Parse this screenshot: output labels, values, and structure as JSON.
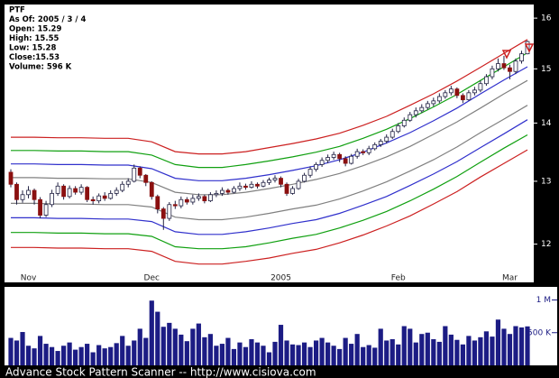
{
  "chart_data": [
    {
      "type": "candlestick",
      "info": [
        "PTF",
        "As Of: 2005 / 3 / 4",
        "Open: 15.29",
        "High: 15.55",
        "Low: 15.28",
        "Close:15.53",
        "Volume: 596 K"
      ],
      "categories": [
        null,
        null,
        null,
        "Nov",
        null,
        null,
        null,
        null,
        null,
        null,
        null,
        null,
        null,
        null,
        null,
        null,
        null,
        null,
        null,
        null,
        null,
        null,
        null,
        null,
        "Dec",
        null,
        null,
        null,
        null,
        null,
        null,
        null,
        null,
        null,
        null,
        null,
        null,
        null,
        null,
        null,
        null,
        null,
        null,
        null,
        null,
        null,
        "2005",
        null,
        null,
        null,
        null,
        null,
        null,
        null,
        null,
        null,
        null,
        null,
        null,
        null,
        null,
        null,
        null,
        null,
        null,
        null,
        "Feb",
        null,
        null,
        null,
        null,
        null,
        null,
        null,
        null,
        null,
        null,
        null,
        null,
        null,
        null,
        null,
        null,
        null,
        null,
        "Mar",
        null,
        null,
        null
      ],
      "open": [
        13.15,
        12.95,
        12.7,
        12.78,
        12.85,
        12.7,
        12.45,
        12.62,
        12.8,
        12.92,
        12.75,
        12.88,
        12.82,
        12.9,
        12.7,
        12.68,
        12.76,
        12.72,
        12.8,
        12.85,
        12.95,
        13.0,
        13.22,
        13.1,
        12.98,
        12.75,
        12.55,
        12.4,
        12.62,
        12.6,
        12.7,
        12.66,
        12.72,
        12.75,
        12.68,
        12.78,
        12.8,
        12.85,
        12.82,
        12.88,
        12.92,
        12.9,
        12.95,
        12.92,
        12.98,
        13.02,
        13.05,
        12.95,
        12.8,
        12.88,
        13.0,
        13.1,
        13.2,
        13.28,
        13.35,
        13.4,
        13.45,
        13.38,
        13.3,
        13.42,
        13.5,
        13.48,
        13.55,
        13.62,
        13.68,
        13.75,
        13.85,
        13.95,
        14.05,
        14.15,
        14.22,
        14.28,
        14.35,
        14.4,
        14.48,
        14.55,
        14.62,
        14.5,
        14.42,
        14.55,
        14.6,
        14.72,
        14.85,
        15.0,
        15.1,
        15.02,
        14.95,
        15.15,
        15.29
      ],
      "high": [
        13.2,
        12.98,
        12.85,
        12.92,
        12.88,
        12.74,
        12.68,
        12.86,
        12.98,
        12.95,
        12.93,
        12.92,
        12.95,
        12.92,
        12.75,
        12.8,
        12.82,
        12.85,
        12.9,
        13.0,
        13.05,
        13.28,
        13.25,
        13.12,
        13.0,
        12.78,
        12.58,
        12.66,
        12.68,
        12.75,
        12.74,
        12.78,
        12.8,
        12.78,
        12.82,
        12.85,
        12.9,
        12.88,
        12.92,
        12.98,
        12.96,
        13.0,
        12.98,
        13.02,
        13.06,
        13.1,
        13.08,
        12.98,
        12.92,
        13.04,
        13.14,
        13.25,
        13.32,
        13.4,
        13.45,
        13.5,
        13.48,
        13.42,
        13.46,
        13.55,
        13.54,
        13.6,
        13.66,
        13.72,
        13.8,
        13.9,
        14.0,
        14.1,
        14.2,
        14.28,
        14.34,
        14.4,
        14.46,
        14.54,
        14.6,
        14.68,
        14.65,
        14.54,
        14.6,
        14.66,
        14.78,
        14.9,
        15.06,
        15.2,
        15.25,
        15.08,
        15.2,
        15.35,
        15.55
      ],
      "low": [
        12.9,
        12.62,
        12.65,
        12.72,
        12.62,
        12.4,
        12.42,
        12.58,
        12.76,
        12.7,
        12.72,
        12.78,
        12.78,
        12.66,
        12.62,
        12.64,
        12.68,
        12.7,
        12.76,
        12.82,
        12.9,
        12.98,
        13.05,
        12.92,
        12.7,
        12.48,
        12.22,
        12.36,
        12.55,
        12.56,
        12.62,
        12.62,
        12.68,
        12.64,
        12.66,
        12.74,
        12.76,
        12.78,
        12.8,
        12.84,
        12.86,
        12.88,
        12.88,
        12.9,
        12.94,
        12.98,
        12.9,
        12.76,
        12.78,
        12.86,
        12.98,
        13.06,
        13.16,
        13.24,
        13.3,
        13.36,
        13.32,
        13.25,
        13.28,
        13.38,
        13.44,
        13.44,
        13.52,
        13.58,
        13.64,
        13.72,
        13.82,
        13.92,
        14.02,
        14.1,
        14.18,
        14.24,
        14.3,
        14.36,
        14.44,
        14.5,
        14.45,
        14.36,
        14.4,
        14.5,
        14.56,
        14.68,
        14.8,
        14.95,
        14.98,
        14.8,
        14.9,
        15.1,
        15.28
      ],
      "close": [
        12.95,
        12.7,
        12.78,
        12.85,
        12.7,
        12.45,
        12.62,
        12.8,
        12.92,
        12.75,
        12.88,
        12.82,
        12.9,
        12.7,
        12.68,
        12.76,
        12.72,
        12.8,
        12.85,
        12.95,
        13.0,
        13.22,
        13.1,
        12.98,
        12.75,
        12.55,
        12.4,
        12.62,
        12.6,
        12.7,
        12.66,
        12.72,
        12.75,
        12.68,
        12.78,
        12.8,
        12.85,
        12.82,
        12.88,
        12.92,
        12.9,
        12.95,
        12.92,
        12.98,
        13.02,
        13.05,
        12.95,
        12.8,
        12.88,
        13.0,
        13.1,
        13.2,
        13.28,
        13.35,
        13.4,
        13.45,
        13.38,
        13.3,
        13.42,
        13.5,
        13.48,
        13.55,
        13.62,
        13.68,
        13.75,
        13.85,
        13.95,
        14.05,
        14.15,
        14.22,
        14.28,
        14.35,
        14.4,
        14.48,
        14.55,
        14.62,
        14.5,
        14.42,
        14.55,
        14.6,
        14.72,
        14.85,
        15.0,
        15.1,
        15.02,
        14.95,
        15.15,
        15.29,
        15.53
      ],
      "up_color": "#ffffff",
      "down_color": "#8b1010",
      "outline_color": "#222244",
      "log": true,
      "ylim": [
        11.43,
        16.28
      ],
      "yticks": [
        12,
        13,
        14,
        15,
        16
      ]
    },
    {
      "type": "line",
      "categories": [
        null,
        null,
        null,
        null,
        null,
        null,
        null,
        null,
        null,
        null,
        null,
        null,
        null,
        null,
        null,
        null,
        null,
        null,
        null,
        null,
        null,
        null,
        null
      ],
      "series": [
        {
          "color": "#cc2020",
          "values": [
            13.75,
            13.75,
            13.74,
            13.74,
            13.73,
            13.73,
            13.67,
            13.5,
            13.46,
            13.46,
            13.5,
            13.57,
            13.64,
            13.72,
            13.82,
            13.96,
            14.12,
            14.32,
            14.53,
            14.77,
            15.03,
            15.3,
            15.57
          ]
        },
        {
          "color": "#10a010",
          "values": [
            13.52,
            13.52,
            13.51,
            13.51,
            13.5,
            13.5,
            13.44,
            13.28,
            13.23,
            13.23,
            13.28,
            13.34,
            13.41,
            13.49,
            13.59,
            13.73,
            13.89,
            14.08,
            14.29,
            14.52,
            14.78,
            15.04,
            15.31
          ]
        },
        {
          "color": "#3030cc",
          "values": [
            13.29,
            13.29,
            13.28,
            13.28,
            13.27,
            13.27,
            13.21,
            13.05,
            13.01,
            13.01,
            13.05,
            13.11,
            13.18,
            13.26,
            13.36,
            13.49,
            13.65,
            13.83,
            14.04,
            14.27,
            14.53,
            14.79,
            15.04
          ]
        },
        {
          "color": "#808080",
          "values": [
            13.06,
            13.06,
            13.05,
            13.05,
            13.04,
            13.04,
            12.98,
            12.82,
            12.78,
            12.78,
            12.82,
            12.88,
            12.95,
            13.03,
            13.13,
            13.26,
            13.41,
            13.59,
            13.8,
            14.02,
            14.27,
            14.53,
            14.78
          ]
        },
        {
          "color": "#808080",
          "values": [
            12.64,
            12.64,
            12.63,
            12.63,
            12.62,
            12.62,
            12.58,
            12.42,
            12.38,
            12.38,
            12.42,
            12.48,
            12.55,
            12.61,
            12.71,
            12.84,
            12.99,
            13.17,
            13.36,
            13.58,
            13.83,
            14.07,
            14.32
          ]
        },
        {
          "color": "#3030cc",
          "values": [
            12.41,
            12.41,
            12.4,
            12.4,
            12.39,
            12.39,
            12.35,
            12.19,
            12.15,
            12.15,
            12.19,
            12.25,
            12.32,
            12.38,
            12.48,
            12.61,
            12.75,
            12.93,
            13.12,
            13.33,
            13.57,
            13.81,
            14.06
          ]
        },
        {
          "color": "#10a010",
          "values": [
            12.18,
            12.18,
            12.17,
            12.17,
            12.16,
            12.16,
            12.12,
            11.96,
            11.93,
            11.93,
            11.96,
            12.02,
            12.09,
            12.15,
            12.25,
            12.37,
            12.51,
            12.68,
            12.87,
            13.08,
            13.32,
            13.56,
            13.79
          ]
        },
        {
          "color": "#cc2020",
          "values": [
            11.95,
            11.95,
            11.94,
            11.94,
            11.93,
            11.93,
            11.89,
            11.74,
            11.7,
            11.7,
            11.74,
            11.79,
            11.86,
            11.92,
            12.02,
            12.14,
            12.28,
            12.44,
            12.63,
            12.83,
            13.07,
            13.3,
            13.53
          ]
        }
      ]
    },
    {
      "type": "bar",
      "color": "#1c1c84",
      "values": [
        420000,
        380000,
        510000,
        300000,
        260000,
        450000,
        330000,
        280000,
        220000,
        300000,
        350000,
        240000,
        280000,
        330000,
        200000,
        310000,
        260000,
        280000,
        340000,
        450000,
        300000,
        380000,
        560000,
        420000,
        990000,
        820000,
        590000,
        650000,
        560000,
        470000,
        370000,
        560000,
        640000,
        430000,
        480000,
        300000,
        330000,
        420000,
        250000,
        350000,
        280000,
        400000,
        350000,
        300000,
        200000,
        360000,
        620000,
        380000,
        320000,
        310000,
        350000,
        280000,
        380000,
        420000,
        350000,
        300000,
        250000,
        420000,
        330000,
        480000,
        280000,
        310000,
        270000,
        560000,
        380000,
        400000,
        320000,
        600000,
        560000,
        350000,
        480000,
        500000,
        400000,
        360000,
        600000,
        470000,
        390000,
        320000,
        450000,
        380000,
        430000,
        520000,
        440000,
        700000,
        560000,
        480000,
        600000,
        580000,
        596000
      ],
      "ylim": [
        0,
        1200000
      ],
      "yticks": [
        {
          "value": 500000,
          "label": "500 K"
        },
        {
          "value": 1000000,
          "label": "1 M"
        }
      ]
    }
  ],
  "footer": "Advance Stock Pattern Scanner -- http://www.cisiova.com"
}
